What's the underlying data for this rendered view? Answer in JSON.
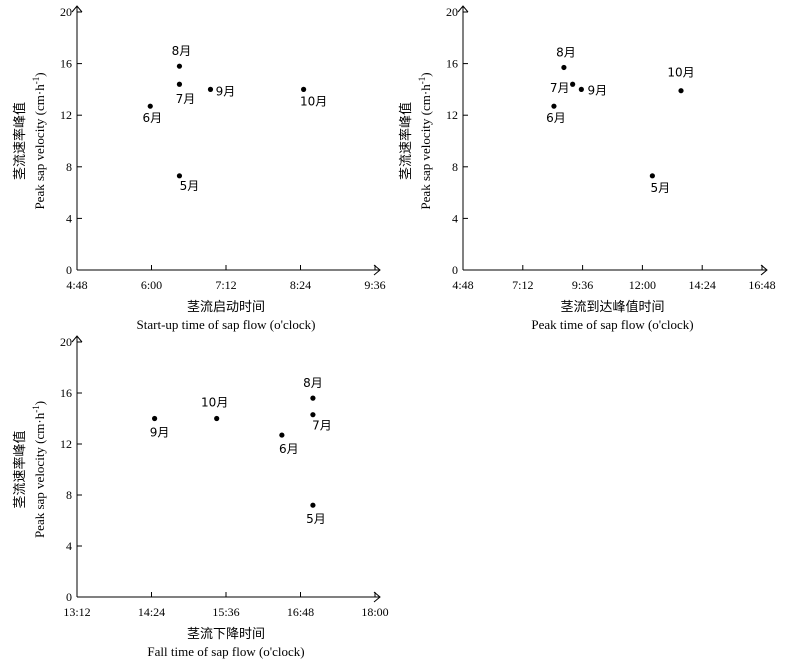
{
  "chart_data": [
    {
      "type": "scatter",
      "xlabel_cn": "茎流启动时间",
      "xlabel_en": "Start-up time of sap flow (o'clock)",
      "ylabel_cn": "茎流速率峰值",
      "ylabel_en": "Peak sap velocity (cm·h",
      "ylabel_en_sup": "-1",
      "ylabel_en_end": ")",
      "xlim": [
        4.8,
        9.6
      ],
      "ylim": [
        0,
        20
      ],
      "xticks": [
        4.8,
        6.0,
        7.2,
        8.4,
        9.6
      ],
      "xtick_labels": [
        "4:48",
        "6:00",
        "7:12",
        "8:24",
        "9:36"
      ],
      "yticks": [
        0,
        4,
        8,
        12,
        16,
        20
      ],
      "ytick_labels": [
        "0",
        "4",
        "8",
        "12",
        "16",
        "20"
      ],
      "points": [
        {
          "label": "5月",
          "x": 6.45,
          "y": 7.3
        },
        {
          "label": "6月",
          "x": 5.98,
          "y": 12.7
        },
        {
          "label": "7月",
          "x": 6.45,
          "y": 14.4
        },
        {
          "label": "8月",
          "x": 6.45,
          "y": 15.8
        },
        {
          "label": "9月",
          "x": 6.95,
          "y": 14.0
        },
        {
          "label": "10月",
          "x": 8.45,
          "y": 14.0
        }
      ]
    },
    {
      "type": "scatter",
      "xlabel_cn": "茎流到达峰值时间",
      "xlabel_en": "Peak time of sap flow (o'clock)",
      "ylabel_cn": "茎流速率峰值",
      "ylabel_en": "Peak sap velocity (cm·h",
      "ylabel_en_sup": "-1",
      "ylabel_en_end": ")",
      "xlim": [
        4.8,
        16.8
      ],
      "ylim": [
        0,
        20
      ],
      "xticks": [
        4.8,
        7.2,
        9.6,
        12.0,
        14.4,
        16.8
      ],
      "xtick_labels": [
        "4:48",
        "7:12",
        "9:36",
        "12:00",
        "14:24",
        "16:48"
      ],
      "yticks": [
        0,
        4,
        8,
        12,
        16,
        20
      ],
      "ytick_labels": [
        "0",
        "4",
        "8",
        "12",
        "16",
        "20"
      ],
      "points": [
        {
          "label": "5月",
          "x": 12.4,
          "y": 7.3
        },
        {
          "label": "6月",
          "x": 8.45,
          "y": 12.7
        },
        {
          "label": "7月",
          "x": 9.2,
          "y": 14.4
        },
        {
          "label": "8月",
          "x": 8.85,
          "y": 15.7
        },
        {
          "label": "9月",
          "x": 9.55,
          "y": 14.0
        },
        {
          "label": "10月",
          "x": 13.55,
          "y": 13.9
        }
      ]
    },
    {
      "type": "scatter",
      "xlabel_cn": "茎流下降时间",
      "xlabel_en": "Fall time of sap flow (o'clock)",
      "ylabel_cn": "茎流速率峰值",
      "ylabel_en": "Peak sap velocity (cm·h",
      "ylabel_en_sup": "-1",
      "ylabel_en_end": ")",
      "xlim": [
        13.2,
        18.0
      ],
      "ylim": [
        0,
        20
      ],
      "xticks": [
        13.2,
        14.4,
        15.6,
        16.8,
        18.0
      ],
      "xtick_labels": [
        "13:12",
        "14:24",
        "15:36",
        "16:48",
        "18:00"
      ],
      "yticks": [
        0,
        4,
        8,
        12,
        16,
        20
      ],
      "ytick_labels": [
        "0",
        "4",
        "8",
        "12",
        "16",
        "20"
      ],
      "points": [
        {
          "label": "5月",
          "x": 17.0,
          "y": 7.2
        },
        {
          "label": "6月",
          "x": 16.5,
          "y": 12.7
        },
        {
          "label": "7月",
          "x": 17.0,
          "y": 14.3
        },
        {
          "label": "8月",
          "x": 17.0,
          "y": 15.6
        },
        {
          "label": "9月",
          "x": 14.45,
          "y": 14.0
        },
        {
          "label": "10月",
          "x": 15.45,
          "y": 14.0
        }
      ]
    }
  ]
}
